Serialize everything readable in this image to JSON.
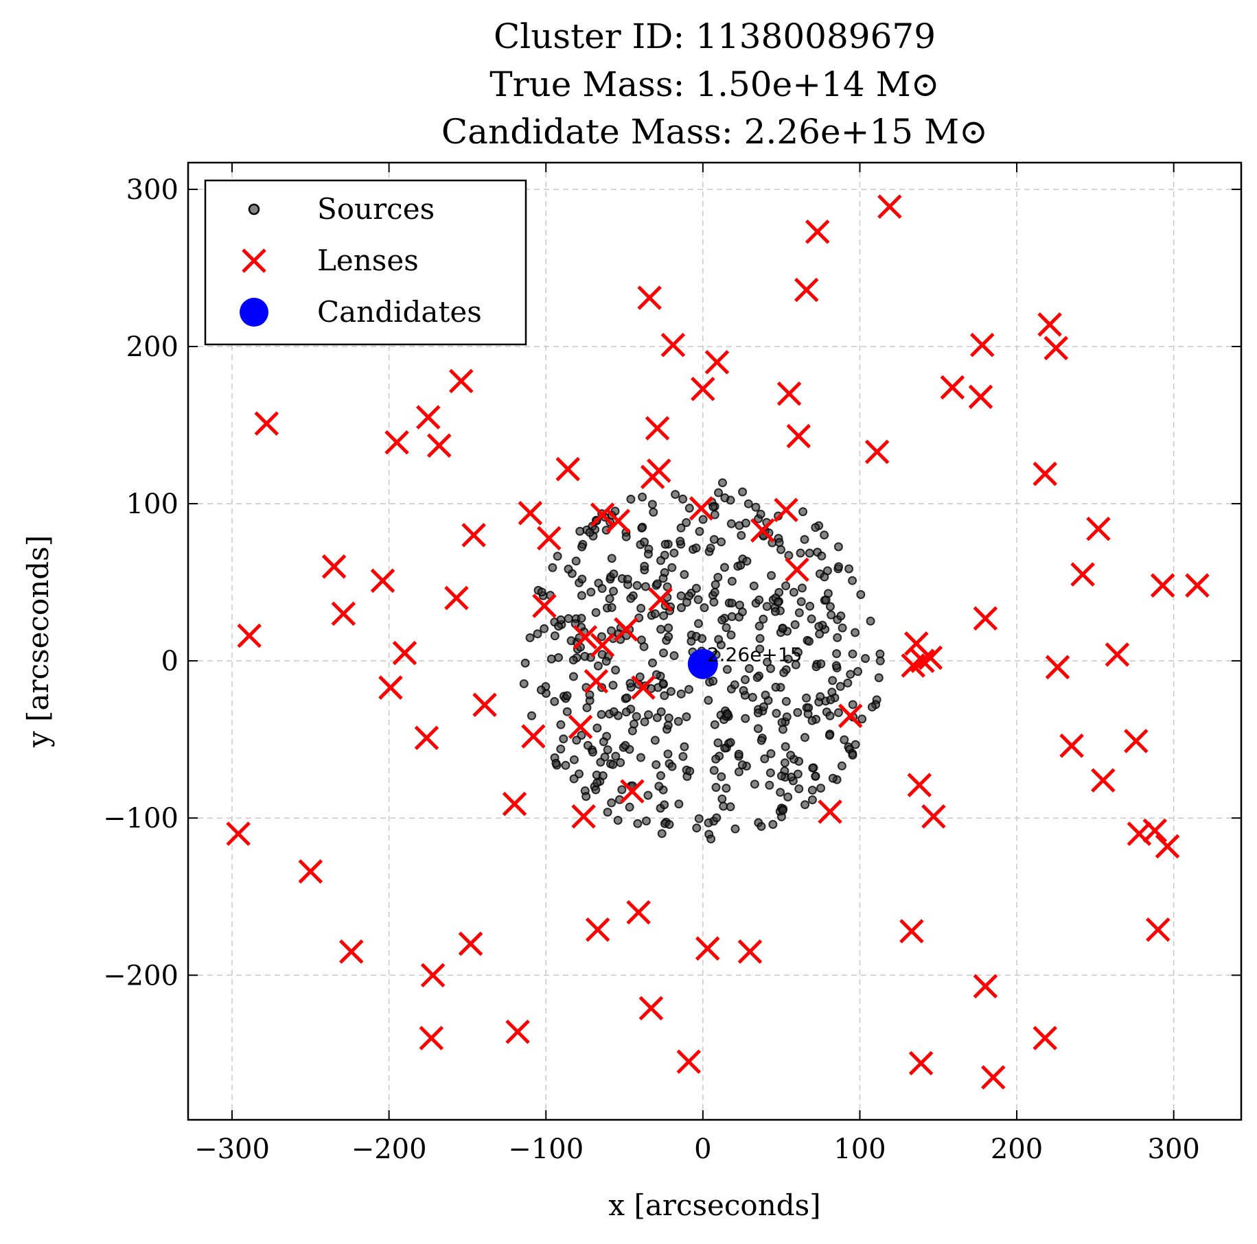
{
  "chart_data": {
    "type": "scatter",
    "title": [
      "Cluster ID: 11380089679",
      "True Mass: 1.50e+14 M⊙",
      "Candidate Mass: 2.26e+15 M⊙"
    ],
    "xlabel": "x [arcseconds]",
    "ylabel": "y [arcseconds]",
    "xlim": [
      -328,
      343
    ],
    "ylim": [
      -292,
      317
    ],
    "x_ticks": [
      -300,
      -200,
      -100,
      0,
      100,
      200,
      300
    ],
    "y_ticks": [
      -200,
      -100,
      0,
      100,
      200,
      300
    ],
    "x_tick_labels": [
      "−300",
      "−200",
      "−100",
      "0",
      "100",
      "200",
      "300"
    ],
    "y_tick_labels": [
      "−200",
      "−100",
      "0",
      "100",
      "200",
      "300"
    ],
    "grid": true,
    "legend_position": "top-left",
    "series": [
      {
        "name": "Sources",
        "marker": "circle",
        "color": "#000000",
        "count_note": "dense cluster of points within radius ~115 arcsec of origin",
        "radius": 115
      },
      {
        "name": "Lenses",
        "marker": "x",
        "color": "#ff0000",
        "points": [
          [
            119,
            289
          ],
          [
            73,
            273
          ],
          [
            66,
            236
          ],
          [
            -34,
            231
          ],
          [
            -19,
            201
          ],
          [
            9,
            190
          ],
          [
            0,
            173
          ],
          [
            -29,
            148
          ],
          [
            55,
            170
          ],
          [
            61,
            143
          ],
          [
            -28,
            121
          ],
          [
            -32,
            117
          ],
          [
            -1,
            97
          ],
          [
            53,
            96
          ],
          [
            -110,
            94
          ],
          [
            -64,
            93
          ],
          [
            -54,
            89
          ],
          [
            -98,
            78
          ],
          [
            38,
            83
          ],
          [
            60,
            58
          ],
          [
            -86,
            122
          ],
          [
            -154,
            178
          ],
          [
            -175,
            155
          ],
          [
            -195,
            139
          ],
          [
            -168,
            137
          ],
          [
            -278,
            151
          ],
          [
            111,
            133
          ],
          [
            159,
            174
          ],
          [
            178,
            201
          ],
          [
            177,
            168
          ],
          [
            221,
            214
          ],
          [
            225,
            199
          ],
          [
            218,
            119
          ],
          [
            252,
            84
          ],
          [
            242,
            55
          ],
          [
            293,
            48
          ],
          [
            315,
            48
          ],
          [
            -146,
            80
          ],
          [
            -157,
            40
          ],
          [
            -101,
            35
          ],
          [
            -235,
            60
          ],
          [
            -204,
            51
          ],
          [
            -229,
            30
          ],
          [
            -289,
            16
          ],
          [
            -190,
            5
          ],
          [
            -199,
            -17
          ],
          [
            -176,
            -49
          ],
          [
            -139,
            -28
          ],
          [
            -75,
            15
          ],
          [
            -64,
            10
          ],
          [
            -49,
            20
          ],
          [
            -68,
            -13
          ],
          [
            -27,
            39
          ],
          [
            -38,
            -17
          ],
          [
            -108,
            -48
          ],
          [
            -78,
            -42
          ],
          [
            -45,
            -83
          ],
          [
            -120,
            -91
          ],
          [
            -76,
            -99
          ],
          [
            136,
            11
          ],
          [
            140,
            0
          ],
          [
            134,
            -3
          ],
          [
            145,
            2
          ],
          [
            180,
            27
          ],
          [
            226,
            -4
          ],
          [
            264,
            4
          ],
          [
            235,
            -54
          ],
          [
            276,
            -51
          ],
          [
            255,
            -76
          ],
          [
            94,
            -35
          ],
          [
            138,
            -79
          ],
          [
            147,
            -99
          ],
          [
            81,
            -96
          ],
          [
            278,
            -110
          ],
          [
            288,
            -108
          ],
          [
            296,
            -118
          ],
          [
            -296,
            -110
          ],
          [
            -250,
            -134
          ],
          [
            -224,
            -185
          ],
          [
            -172,
            -200
          ],
          [
            -173,
            -240
          ],
          [
            -148,
            -180
          ],
          [
            -118,
            -236
          ],
          [
            -67,
            -171
          ],
          [
            -41,
            -160
          ],
          [
            -33,
            -221
          ],
          [
            -9,
            -255
          ],
          [
            3,
            -183
          ],
          [
            30,
            -185
          ],
          [
            133,
            -172
          ],
          [
            180,
            -207
          ],
          [
            218,
            -240
          ],
          [
            139,
            -256
          ],
          [
            185,
            -265
          ],
          [
            290,
            -171
          ]
        ]
      },
      {
        "name": "Candidates",
        "marker": "circle",
        "color": "#0000ff",
        "points": [
          [
            0,
            -2
          ]
        ],
        "labels": [
          "2.26e+15"
        ]
      }
    ]
  }
}
